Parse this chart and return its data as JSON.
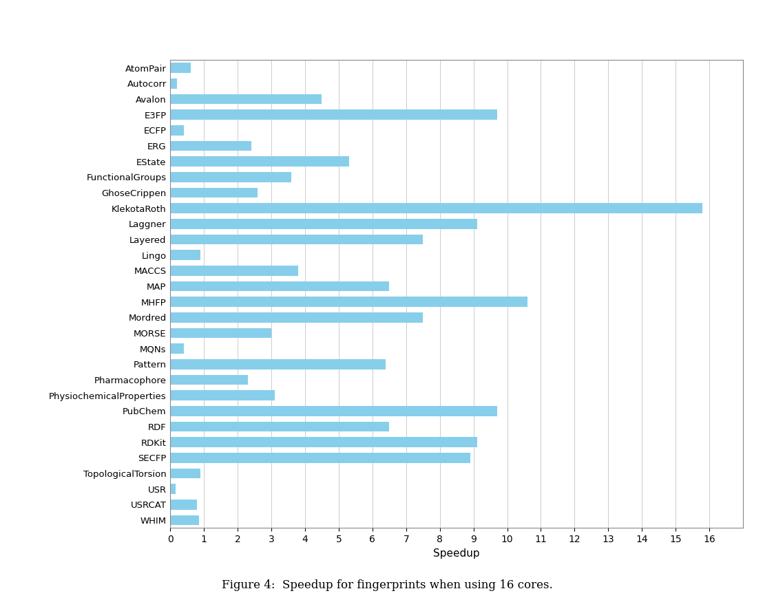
{
  "categories": [
    "AtomPair",
    "Autocorr",
    "Avalon",
    "E3FP",
    "ECFP",
    "ERG",
    "EState",
    "FunctionalGroups",
    "GhoseCrippen",
    "KlekotaRoth",
    "Laggner",
    "Layered",
    "Lingo",
    "MACCS",
    "MAP",
    "MHFP",
    "Mordred",
    "MORSE",
    "MQNs",
    "Pattern",
    "Pharmacophore",
    "PhysiochemicalProperties",
    "PubChem",
    "RDF",
    "RDKit",
    "SECFP",
    "TopologicalTorsion",
    "USR",
    "USRCAT",
    "WHIM"
  ],
  "values": [
    0.6,
    0.2,
    4.5,
    9.7,
    0.4,
    2.4,
    5.3,
    3.6,
    2.6,
    15.8,
    9.1,
    7.5,
    0.9,
    3.8,
    6.5,
    10.6,
    7.5,
    3.0,
    0.4,
    6.4,
    2.3,
    3.1,
    9.7,
    6.5,
    9.1,
    8.9,
    0.9,
    0.15,
    0.8,
    0.85
  ],
  "bar_color": "#87CEEB",
  "xlabel": "Speedup",
  "xlim": [
    0,
    17
  ],
  "xticks": [
    0,
    1,
    2,
    3,
    4,
    5,
    6,
    7,
    8,
    9,
    10,
    11,
    12,
    13,
    14,
    15,
    16
  ],
  "caption": "Figure 4:  Speedup for fingerprints when using 16 cores.",
  "background_color": "#ffffff",
  "grid_color": "#cccccc",
  "label_fontsize": 9.5,
  "xlabel_fontsize": 11,
  "tick_fontsize": 10
}
